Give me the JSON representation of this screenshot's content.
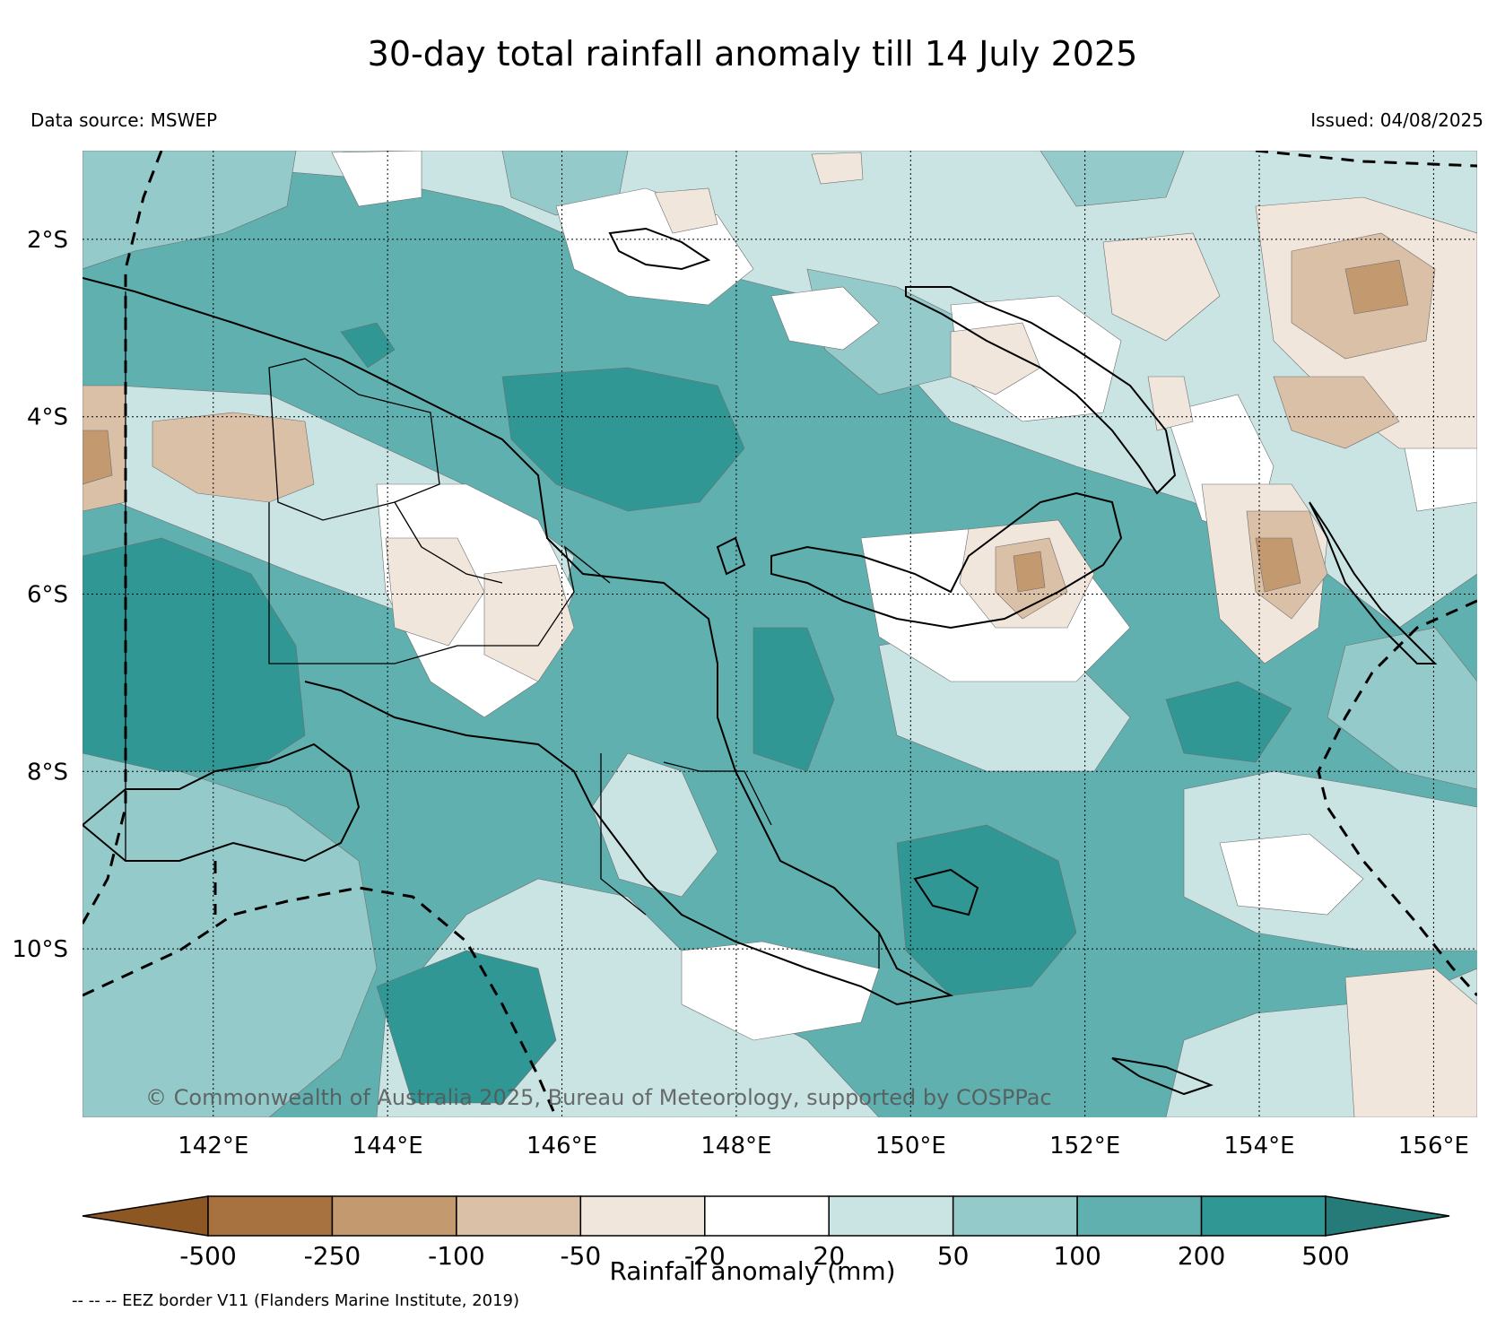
{
  "header": {
    "title": "30-day total rainfall anomaly till 14 July 2025",
    "data_source": "Data source: MSWEP",
    "issued": "Issued: 04/08/2025"
  },
  "map": {
    "extent": {
      "lon_min": 140.5,
      "lon_max": 156.5,
      "lat_min": -11.9,
      "lat_max": -1.0
    },
    "lat_ticks": [
      {
        "value": -2,
        "label": "2°S"
      },
      {
        "value": -4,
        "label": "4°S"
      },
      {
        "value": -6,
        "label": "6°S"
      },
      {
        "value": -8,
        "label": "8°S"
      },
      {
        "value": -10,
        "label": "10°S"
      }
    ],
    "lon_ticks": [
      {
        "value": 142,
        "label": "142°E"
      },
      {
        "value": 144,
        "label": "144°E"
      },
      {
        "value": 146,
        "label": "146°E"
      },
      {
        "value": 148,
        "label": "148°E"
      },
      {
        "value": 150,
        "label": "150°E"
      },
      {
        "value": 152,
        "label": "152°E"
      },
      {
        "value": 154,
        "label": "154°E"
      },
      {
        "value": 156,
        "label": "156°E"
      }
    ],
    "copyright": "© Commonwealth of Australia 2025, Bureau of Meteorology, supported by COSPPac",
    "colors": {
      "ocean_base": "#61b0b0",
      "anomaly_20_50": "#c9e4e3",
      "anomaly_50_100": "#94cac9",
      "anomaly_100_200": "#61b0b0",
      "anomaly_200_500": "#309795",
      "anomaly_over_500": "#267b79",
      "anomaly_neg20_20": "#ffffff",
      "anomaly_neg50_neg20": "#f1e6dc",
      "anomaly_neg100_neg50": "#dbc0a8",
      "anomaly_neg250_neg100": "#c39a70",
      "anomaly_neg500_neg250": "#a87240",
      "anomaly_under_neg500": "#8d5724"
    }
  },
  "colorbar": {
    "label": "Rainfall anomaly (mm)",
    "tick_labels": [
      "-500",
      "-250",
      "-100",
      "-50",
      "-20",
      "20",
      "50",
      "100",
      "200",
      "500"
    ],
    "colors": [
      "#a87240",
      "#c39a70",
      "#dbc0a8",
      "#f1e6dc",
      "#ffffff",
      "#c9e4e3",
      "#94cac9",
      "#61b0b0",
      "#309795"
    ],
    "under_color": "#8d5724",
    "over_color": "#267b79"
  },
  "footer": {
    "eez_note": "-- -- -- EEZ border V11 (Flanders Marine Institute, 2019)"
  }
}
